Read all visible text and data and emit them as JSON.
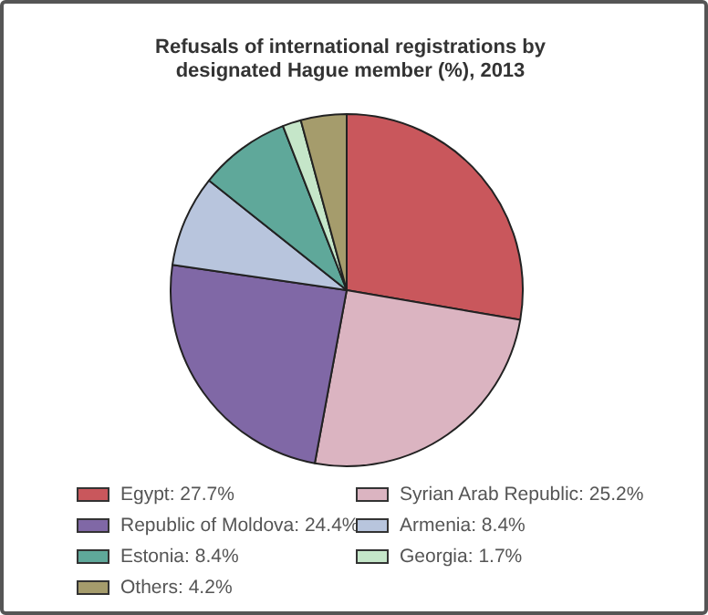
{
  "chart_data": {
    "type": "pie",
    "title": "Refusals of international registrations by designated Hague member (%), 2013",
    "categories": [
      "Egypt",
      "Syrian Arab Republic",
      "Republic of Moldova",
      "Armenia",
      "Estonia",
      "Georgia",
      "Others"
    ],
    "values": [
      27.7,
      25.2,
      24.4,
      8.4,
      8.4,
      1.7,
      4.2
    ],
    "value_labels": [
      "27.7%",
      "25.2%",
      "24.4%",
      "8.4%",
      "8.4%",
      "1.7%",
      "4.2%"
    ],
    "colors": [
      "#c9575c",
      "#dbb4c1",
      "#8068a6",
      "#b8c5dd",
      "#5fa89a",
      "#c5e6c9",
      "#a59c6c"
    ],
    "legend": "bottom"
  }
}
